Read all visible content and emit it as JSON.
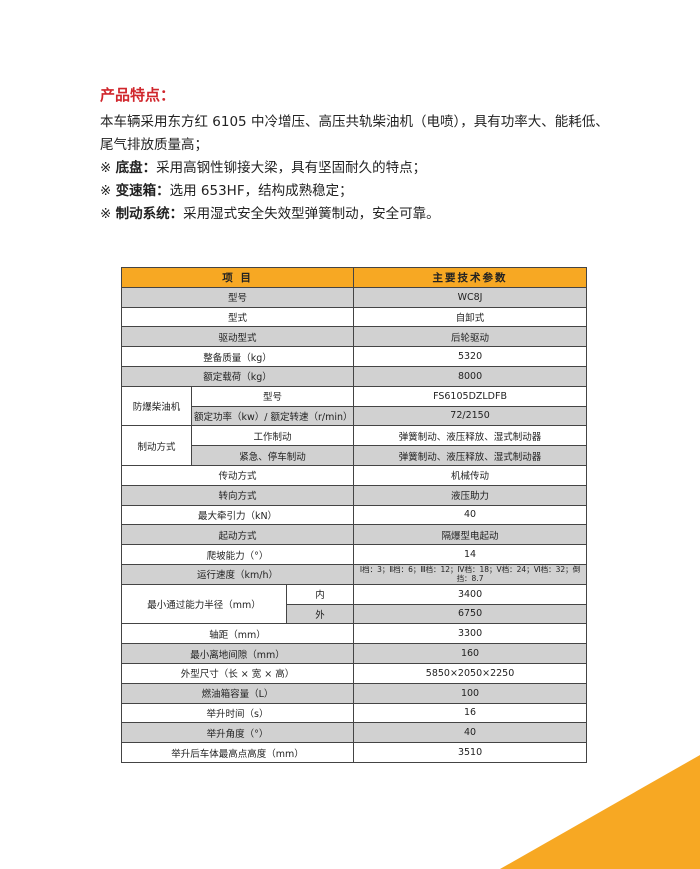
{
  "features": {
    "title": "产品特点：",
    "intro": "本车辆采用东方红 6105 中冷增压、高压共轨柴油机（电喷），具有功率大、能耗低、尾气排放质量高；",
    "items": [
      {
        "marker": "※",
        "label": "底盘：",
        "text": "采用高钢性铆接大梁，具有坚固耐久的特点；"
      },
      {
        "marker": "※",
        "label": "变速箱：",
        "text": "选用 653HF，结构成熟稳定；"
      },
      {
        "marker": "※",
        "label": "制动系统：",
        "text": "采用湿式安全失效型弹簧制动，安全可靠。"
      }
    ]
  },
  "table": {
    "header": [
      "项 目",
      "主要技术参数"
    ],
    "rows": [
      {
        "label": "型号",
        "value": "WC8J"
      },
      {
        "label": "型式",
        "value": "自卸式"
      },
      {
        "label": "驱动型式",
        "value": "后轮驱动"
      },
      {
        "label": "整备质量（kg）",
        "value": "5320"
      },
      {
        "label": "额定载荷（kg）",
        "value": "8000"
      },
      {
        "group": "防爆柴油机",
        "items": [
          {
            "label": "型号",
            "value": "FS6105DZLDFB"
          },
          {
            "label": "额定功率（kw）/ 额定转速（r/min）",
            "value": "72/2150"
          }
        ]
      },
      {
        "group": "制动方式",
        "items": [
          {
            "label": "工作制动",
            "value": "弹簧制动、液压释放、湿式制动器"
          },
          {
            "label": "紧急、停车制动",
            "value": "弹簧制动、液压释放、湿式制动器"
          }
        ]
      },
      {
        "label": "传动方式",
        "value": "机械传动"
      },
      {
        "label": "转向方式",
        "value": "液压助力"
      },
      {
        "label": "最大牵引力（kN）",
        "value": "40"
      },
      {
        "label": "起动方式",
        "value": "隔爆型电起动"
      },
      {
        "label": "爬坡能力（°）",
        "value": "14"
      },
      {
        "label": "运行速度（km/h）",
        "value": "Ⅰ档：3；Ⅱ档：6；Ⅲ档：12；Ⅳ档：18；Ⅴ档：24；Ⅵ档：32；倒挡：8.7"
      },
      {
        "group": "最小通过能力半径（mm）",
        "wide": true,
        "items": [
          {
            "label": "内",
            "value": "3400"
          },
          {
            "label": "外",
            "value": "6750"
          }
        ]
      },
      {
        "label": "轴距（mm）",
        "value": "3300"
      },
      {
        "label": "最小离地间隙（mm）",
        "value": "160"
      },
      {
        "label": "外型尺寸（长 × 宽 × 高）",
        "value": "5850×2050×2250"
      },
      {
        "label": "燃油箱容量（L）",
        "value": "100"
      },
      {
        "label": "举升时间（s）",
        "value": "16"
      },
      {
        "label": "举升角度（°）",
        "value": "40"
      },
      {
        "label": "举升后车体最高点高度（mm）",
        "value": "3510"
      }
    ]
  }
}
